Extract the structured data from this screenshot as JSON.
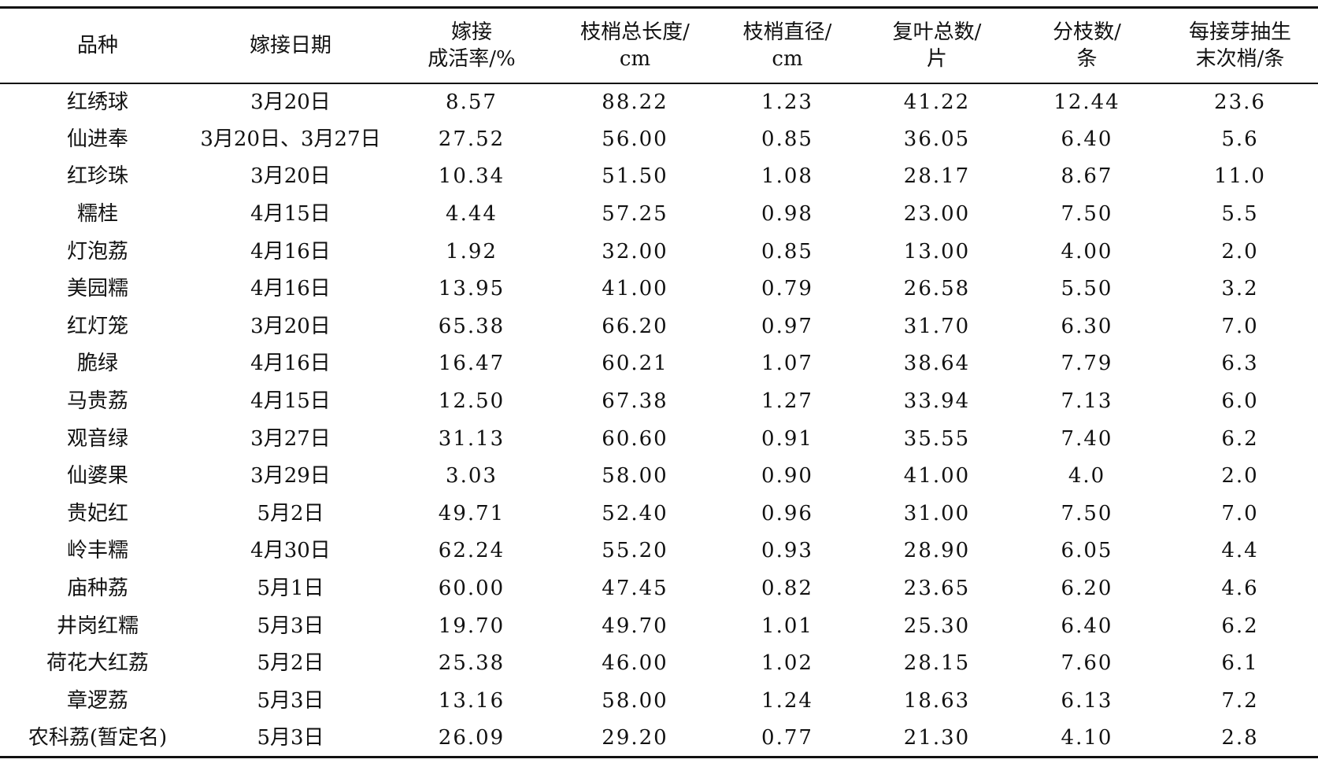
{
  "table": {
    "header": [
      [
        "品种"
      ],
      [
        "嫁接日期"
      ],
      [
        "嫁接",
        "成活率/%"
      ],
      [
        "枝梢总长度/",
        "cm"
      ],
      [
        "枝梢直径/",
        "cm"
      ],
      [
        "复叶总数/",
        "片"
      ],
      [
        "分枝数/",
        "条"
      ],
      [
        "每接芽抽生",
        "末次梢/条"
      ]
    ],
    "rows": [
      [
        "红绣球",
        "3月20日",
        "8.57",
        "88.22",
        "1.23",
        "41.22",
        "12.44",
        "23.6"
      ],
      [
        "仙进奉",
        "3月20日、3月27日",
        "27.52",
        "56.00",
        "0.85",
        "36.05",
        "6.40",
        "5.6"
      ],
      [
        "红珍珠",
        "3月20日",
        "10.34",
        "51.50",
        "1.08",
        "28.17",
        "8.67",
        "11.0"
      ],
      [
        "糯桂",
        "4月15日",
        "4.44",
        "57.25",
        "0.98",
        "23.00",
        "7.50",
        "5.5"
      ],
      [
        "灯泡荔",
        "4月16日",
        "1.92",
        "32.00",
        "0.85",
        "13.00",
        "4.00",
        "2.0"
      ],
      [
        "美园糯",
        "4月16日",
        "13.95",
        "41.00",
        "0.79",
        "26.58",
        "5.50",
        "3.2"
      ],
      [
        "红灯笼",
        "3月20日",
        "65.38",
        "66.20",
        "0.97",
        "31.70",
        "6.30",
        "7.0"
      ],
      [
        "脆绿",
        "4月16日",
        "16.47",
        "60.21",
        "1.07",
        "38.64",
        "7.79",
        "6.3"
      ],
      [
        "马贵荔",
        "4月15日",
        "12.50",
        "67.38",
        "1.27",
        "33.94",
        "7.13",
        "6.0"
      ],
      [
        "观音绿",
        "3月27日",
        "31.13",
        "60.60",
        "0.91",
        "35.55",
        "7.40",
        "6.2"
      ],
      [
        "仙婆果",
        "3月29日",
        "3.03",
        "58.00",
        "0.90",
        "41.00",
        "4.0",
        "2.0"
      ],
      [
        "贵妃红",
        "5月2日",
        "49.71",
        "52.40",
        "0.96",
        "31.00",
        "7.50",
        "7.0"
      ],
      [
        "岭丰糯",
        "4月30日",
        "62.24",
        "55.20",
        "0.93",
        "28.90",
        "6.05",
        "4.4"
      ],
      [
        "庙种荔",
        "5月1日",
        "60.00",
        "47.45",
        "0.82",
        "23.65",
        "6.20",
        "4.6"
      ],
      [
        "井岗红糯",
        "5月3日",
        "19.70",
        "49.70",
        "1.01",
        "25.30",
        "6.40",
        "6.2"
      ],
      [
        "荷花大红荔",
        "5月2日",
        "25.38",
        "46.00",
        "1.02",
        "28.15",
        "7.60",
        "6.1"
      ],
      [
        "章逻荔",
        "5月3日",
        "13.16",
        "58.00",
        "1.24",
        "18.63",
        "6.13",
        "7.2"
      ],
      [
        "农科荔(暂定名)",
        "5月3日",
        "26.09",
        "29.20",
        "0.77",
        "21.30",
        "4.10",
        "2.8"
      ]
    ]
  }
}
